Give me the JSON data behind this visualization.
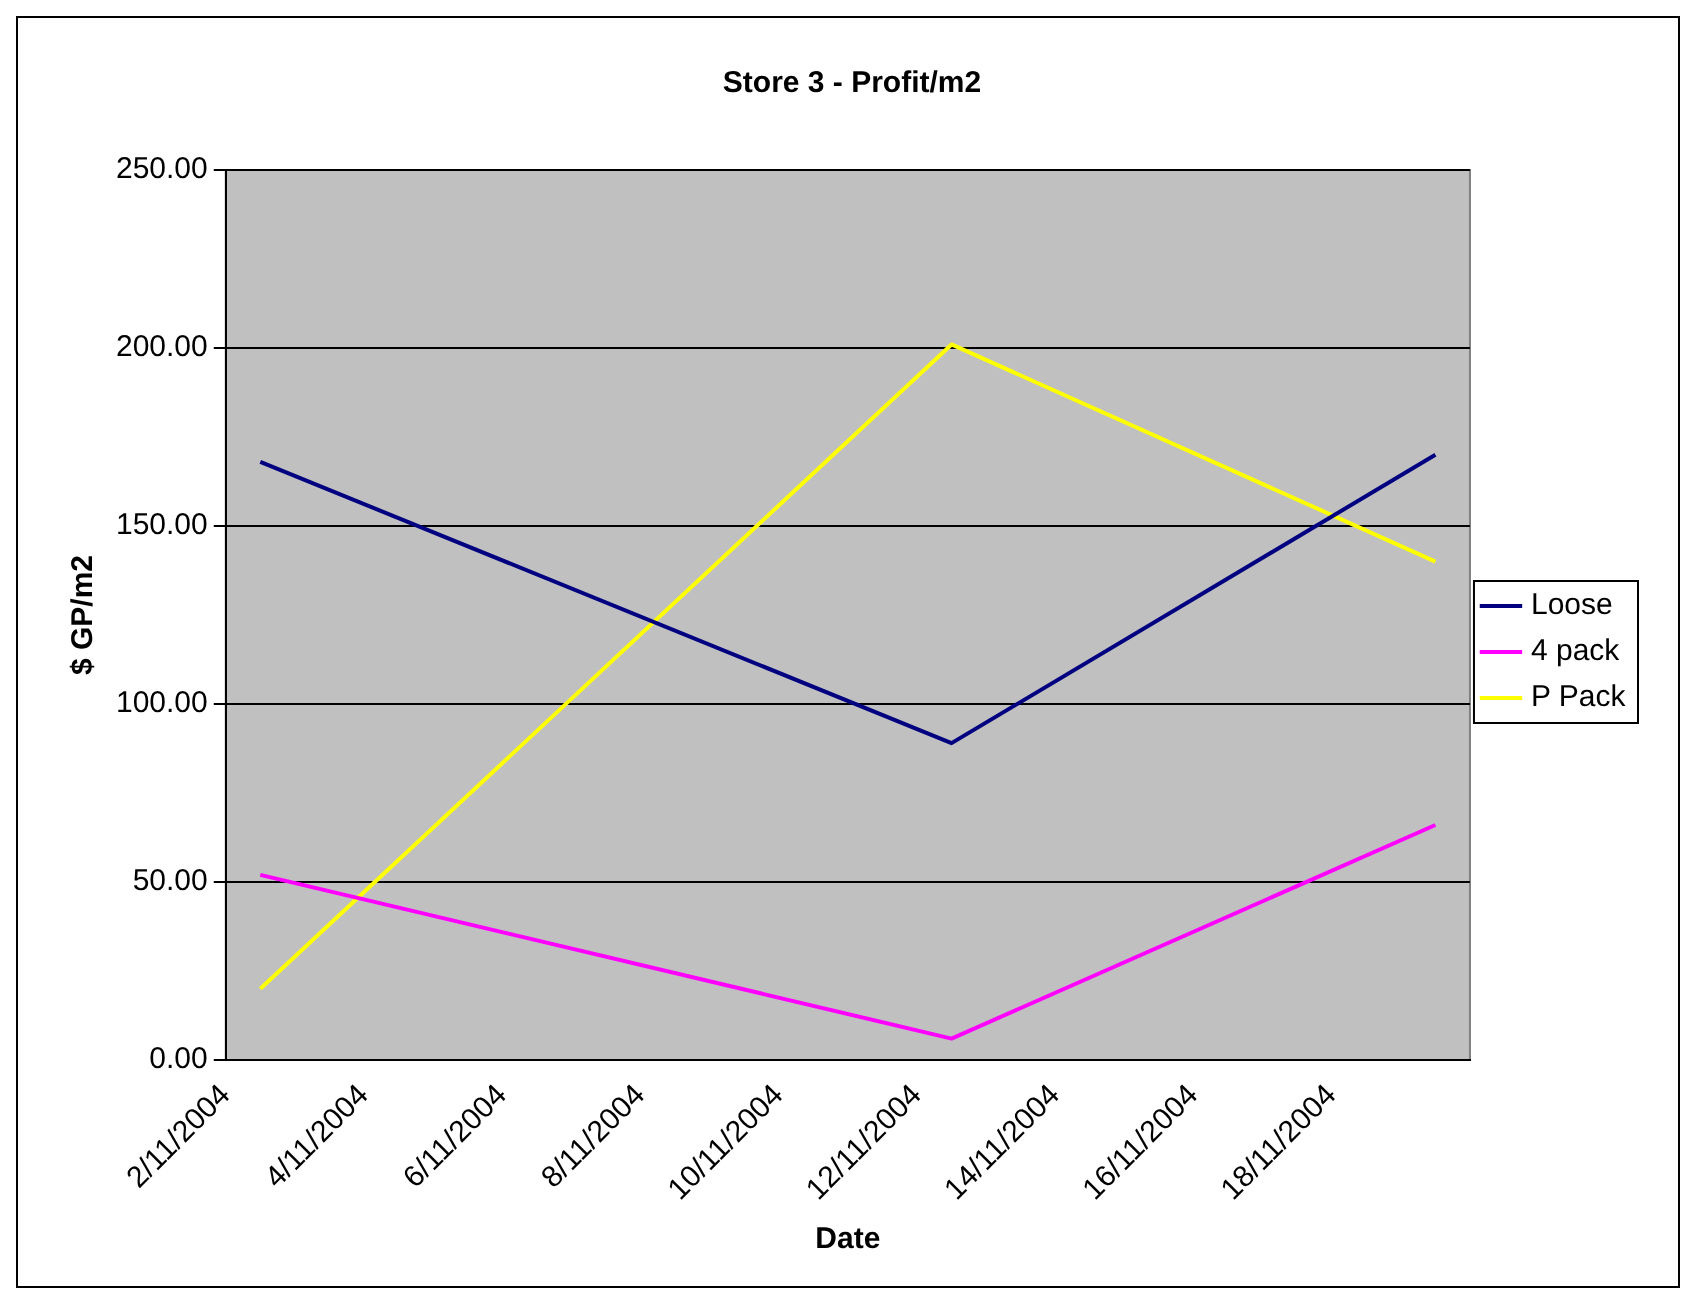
{
  "chart_data": {
    "type": "line",
    "title": "Store 3 - Profit/m2",
    "xlabel": "Date",
    "ylabel": "$ GP/m2",
    "x": [
      "2004-11-02T12:00",
      "2004-11-12T12:00",
      "2004-11-19T12:00"
    ],
    "series": [
      {
        "name": "Loose",
        "color": "#000080",
        "values": [
          168,
          89,
          170
        ]
      },
      {
        "name": "4 pack",
        "color": "#ff00ff",
        "values": [
          52,
          6,
          66
        ]
      },
      {
        "name": "P Pack",
        "color": "#ffff00",
        "values": [
          20,
          201,
          140
        ]
      }
    ],
    "xlim": [
      "2004-11-02",
      "2004-11-20"
    ],
    "xticks": [
      {
        "value": "2004-11-02",
        "label": "2/11/2004"
      },
      {
        "value": "2004-11-04",
        "label": "4/11/2004"
      },
      {
        "value": "2004-11-06",
        "label": "6/11/2004"
      },
      {
        "value": "2004-11-08",
        "label": "8/11/2004"
      },
      {
        "value": "2004-11-10",
        "label": "10/11/2004"
      },
      {
        "value": "2004-11-12",
        "label": "12/11/2004"
      },
      {
        "value": "2004-11-14",
        "label": "14/11/2004"
      },
      {
        "value": "2004-11-16",
        "label": "16/11/2004"
      },
      {
        "value": "2004-11-18",
        "label": "18/11/2004"
      },
      {
        "value": "2004-11-20",
        "label": null
      }
    ],
    "ylim": [
      0,
      250
    ],
    "yticks": [
      {
        "value": 0,
        "label": "0.00"
      },
      {
        "value": 50,
        "label": "50.00"
      },
      {
        "value": 100,
        "label": "100.00"
      },
      {
        "value": 150,
        "label": "150.00"
      },
      {
        "value": 200,
        "label": "200.00"
      },
      {
        "value": 250,
        "label": "250.00"
      }
    ],
    "grid": "y",
    "legend": "right",
    "marker": "none",
    "line_style": "solid"
  }
}
